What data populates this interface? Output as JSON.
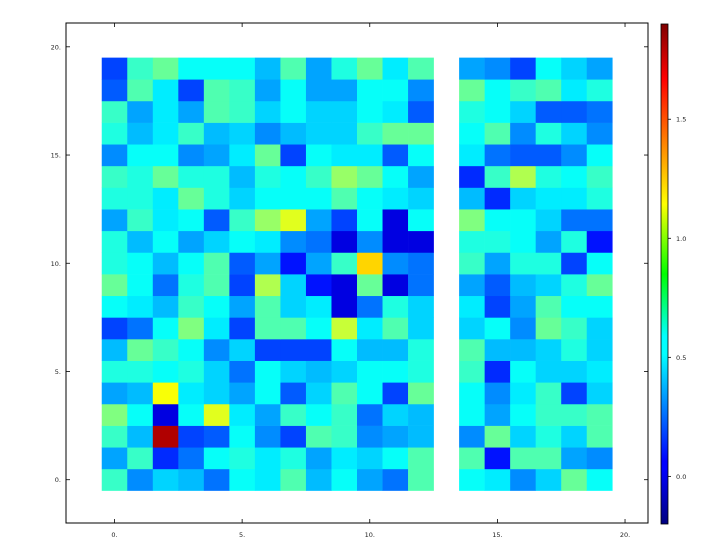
{
  "chart_data": {
    "type": "heatmap",
    "title": "",
    "xlabel": "",
    "ylabel": "",
    "xlim": [
      -1.9,
      20.9
    ],
    "ylim": [
      -2.0,
      21.1
    ],
    "x_ticks": [
      0,
      5,
      10,
      15,
      20
    ],
    "x_tick_labels": [
      "0.",
      "5.",
      "10.",
      "15.",
      "20."
    ],
    "y_ticks": [
      0,
      5,
      10,
      15,
      20
    ],
    "y_tick_labels": [
      "0.",
      "5.",
      "10.",
      "15.",
      "20."
    ],
    "colorbar": {
      "colormap": "jet",
      "vmin": -0.2,
      "vmax": 1.9,
      "ticks": [
        0.0,
        0.5,
        1.0,
        1.5
      ],
      "tick_labels": [
        "0.0",
        "0.5",
        "1.0",
        "1.5"
      ]
    },
    "x": [
      0,
      1,
      2,
      3,
      4,
      5,
      6,
      7,
      8,
      9,
      10,
      11,
      12,
      14,
      15,
      16,
      17,
      18,
      19
    ],
    "y": [
      0,
      1,
      2,
      3,
      4,
      5,
      6,
      7,
      8,
      9,
      10,
      11,
      12,
      13,
      14,
      15,
      16,
      17,
      18,
      19
    ],
    "grid": false,
    "values": [
      [
        0.7,
        0.35,
        0.5,
        0.45,
        0.3,
        0.6,
        0.55,
        0.75,
        0.45,
        0.6,
        0.4,
        0.3,
        0.75,
        0.6,
        0.55,
        0.35,
        0.5,
        0.8,
        0.6
      ],
      [
        0.4,
        0.7,
        0.15,
        0.3,
        0.6,
        0.65,
        0.55,
        0.65,
        0.4,
        0.55,
        0.5,
        0.6,
        0.75,
        0.75,
        0.1,
        0.75,
        0.75,
        0.4,
        0.35
      ],
      [
        0.7,
        0.45,
        1.8,
        0.2,
        0.25,
        0.6,
        0.35,
        0.2,
        0.75,
        0.7,
        0.35,
        0.4,
        0.45,
        0.35,
        0.8,
        0.5,
        0.65,
        0.5,
        0.75
      ],
      [
        0.85,
        0.6,
        0.0,
        0.6,
        1.05,
        0.55,
        0.4,
        0.7,
        0.6,
        0.7,
        0.3,
        0.5,
        0.45,
        0.6,
        0.4,
        0.6,
        0.7,
        0.7,
        0.75
      ],
      [
        0.4,
        0.45,
        1.1,
        0.55,
        0.5,
        0.4,
        0.6,
        0.25,
        0.5,
        0.75,
        0.6,
        0.2,
        0.8,
        0.6,
        0.35,
        0.55,
        0.7,
        0.2,
        0.5
      ],
      [
        0.65,
        0.65,
        0.6,
        0.65,
        0.5,
        0.3,
        0.6,
        0.5,
        0.45,
        0.5,
        0.6,
        0.6,
        0.65,
        0.7,
        0.15,
        0.6,
        0.5,
        0.5,
        0.55
      ],
      [
        0.45,
        0.8,
        0.7,
        0.6,
        0.35,
        0.5,
        0.2,
        0.2,
        0.2,
        0.6,
        0.45,
        0.45,
        0.65,
        0.75,
        0.45,
        0.45,
        0.5,
        0.65,
        0.5
      ],
      [
        0.2,
        0.3,
        0.6,
        0.85,
        0.55,
        0.2,
        0.75,
        0.75,
        0.6,
        1.0,
        0.55,
        0.75,
        0.5,
        0.5,
        0.6,
        0.35,
        0.8,
        0.7,
        0.5
      ],
      [
        0.6,
        0.55,
        0.45,
        0.7,
        0.6,
        0.4,
        0.75,
        0.5,
        0.55,
        0.0,
        0.3,
        0.65,
        0.5,
        0.55,
        0.2,
        0.4,
        0.75,
        0.6,
        0.6
      ],
      [
        0.8,
        0.6,
        0.3,
        0.65,
        0.75,
        0.2,
        0.95,
        0.5,
        0.1,
        0.0,
        0.8,
        0.0,
        0.3,
        0.4,
        0.25,
        0.45,
        0.5,
        0.65,
        0.8
      ],
      [
        0.65,
        0.6,
        0.45,
        0.6,
        0.75,
        0.25,
        0.4,
        0.1,
        0.4,
        0.7,
        1.2,
        0.35,
        0.3,
        0.7,
        0.4,
        0.65,
        0.65,
        0.2,
        0.6
      ],
      [
        0.65,
        0.45,
        0.6,
        0.4,
        0.5,
        0.6,
        0.55,
        0.35,
        0.3,
        0.0,
        0.35,
        0.0,
        0.0,
        0.65,
        0.65,
        0.6,
        0.4,
        0.65,
        0.1
      ],
      [
        0.4,
        0.7,
        0.55,
        0.6,
        0.25,
        0.7,
        0.9,
        1.05,
        0.4,
        0.2,
        0.6,
        0.0,
        0.6,
        0.85,
        0.6,
        0.6,
        0.5,
        0.3,
        0.3
      ],
      [
        0.65,
        0.65,
        0.55,
        0.8,
        0.65,
        0.5,
        0.6,
        0.6,
        0.6,
        0.75,
        0.6,
        0.55,
        0.5,
        0.45,
        0.15,
        0.5,
        0.55,
        0.55,
        0.65
      ],
      [
        0.7,
        0.65,
        0.8,
        0.65,
        0.65,
        0.45,
        0.65,
        0.6,
        0.7,
        0.9,
        0.8,
        0.6,
        0.4,
        0.15,
        0.7,
        0.95,
        0.65,
        0.6,
        0.7
      ],
      [
        0.35,
        0.6,
        0.6,
        0.35,
        0.4,
        0.55,
        0.8,
        0.2,
        0.6,
        0.55,
        0.55,
        0.25,
        0.6,
        0.55,
        0.3,
        0.25,
        0.25,
        0.35,
        0.6
      ],
      [
        0.65,
        0.45,
        0.55,
        0.7,
        0.45,
        0.5,
        0.35,
        0.45,
        0.5,
        0.5,
        0.7,
        0.8,
        0.8,
        0.6,
        0.75,
        0.35,
        0.65,
        0.5,
        0.35
      ],
      [
        0.7,
        0.4,
        0.55,
        0.4,
        0.75,
        0.7,
        0.5,
        0.6,
        0.5,
        0.5,
        0.6,
        0.55,
        0.25,
        0.65,
        0.6,
        0.5,
        0.25,
        0.25,
        0.3
      ],
      [
        0.25,
        0.75,
        0.55,
        0.2,
        0.75,
        0.7,
        0.4,
        0.6,
        0.4,
        0.4,
        0.6,
        0.6,
        0.35,
        0.8,
        0.6,
        0.7,
        0.75,
        0.55,
        0.65
      ],
      [
        0.2,
        0.7,
        0.8,
        0.6,
        0.6,
        0.6,
        0.45,
        0.75,
        0.4,
        0.65,
        0.8,
        0.55,
        0.75,
        0.4,
        0.35,
        0.2,
        0.6,
        0.5,
        0.4
      ]
    ]
  }
}
